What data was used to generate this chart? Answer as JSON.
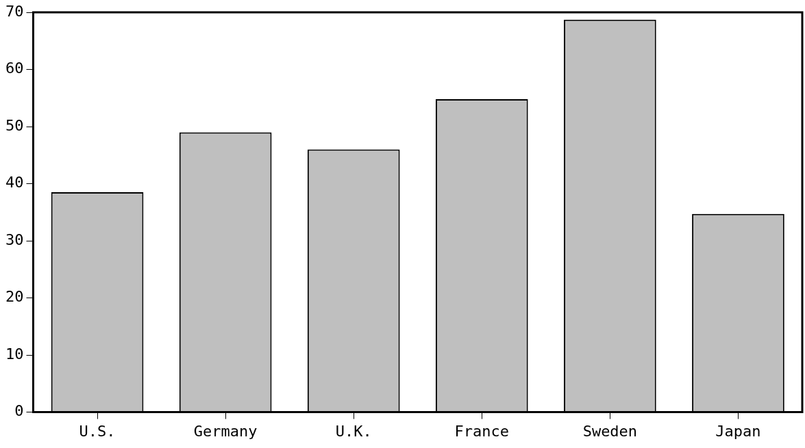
{
  "chart_data": {
    "type": "bar",
    "categories": [
      "U.S.",
      "Germany",
      "U.K.",
      "France",
      "Sweden",
      "Japan"
    ],
    "values": [
      38.5,
      49,
      46,
      54.8,
      68.7,
      34.7
    ],
    "color": "#bfbfbf",
    "ylim": [
      0,
      70
    ],
    "yticks": [
      0,
      10,
      20,
      30,
      40,
      50,
      60,
      70
    ],
    "grid": false,
    "legend": false
  }
}
